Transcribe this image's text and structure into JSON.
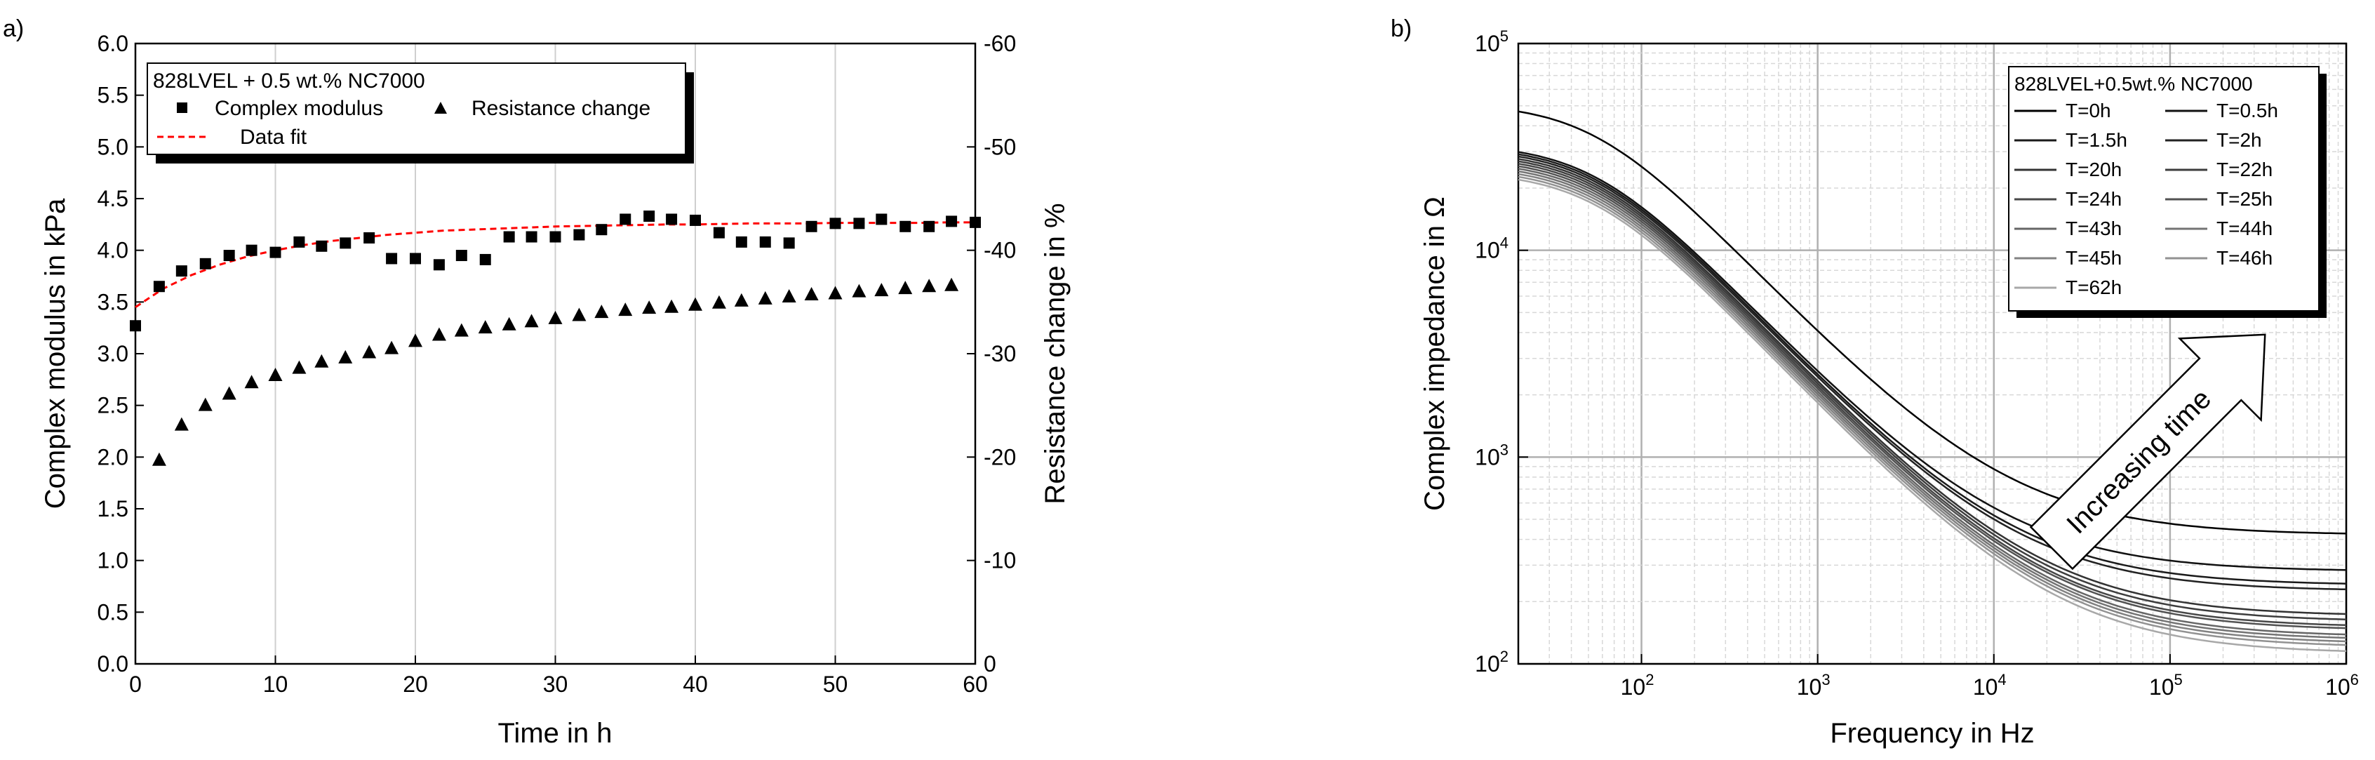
{
  "chart_data": [
    {
      "panel_label": "a)",
      "type": "scatter",
      "xlabel": "Time in h",
      "ylabel": "Complex modulus in kPa",
      "y2label": "Resistance change in %",
      "xlim": [
        0,
        60
      ],
      "ylim": [
        0,
        6
      ],
      "y2lim": [
        0,
        -60
      ],
      "xticks": [
        "0",
        "10",
        "20",
        "30",
        "40",
        "50",
        "60"
      ],
      "yticks": [
        "0.0",
        "0.5",
        "1.0",
        "1.5",
        "2.0",
        "2.5",
        "3.0",
        "3.5",
        "4.0",
        "4.5",
        "5.0",
        "5.5",
        "6.0"
      ],
      "y2ticks": [
        "0",
        "-10",
        "-20",
        "-30",
        "-40",
        "-50",
        "-60"
      ],
      "grid": "vertical",
      "legend": {
        "title": "828LVEL + 0.5 wt.% NC7000",
        "position": "top-left",
        "entries": [
          "Complex modulus",
          "Resistance change",
          "Data fit"
        ]
      },
      "series": [
        {
          "name": "Complex modulus",
          "marker": "square",
          "axis": "left",
          "x": [
            0,
            1.7,
            3.3,
            5,
            6.7,
            8.3,
            10,
            11.7,
            13.3,
            15,
            16.7,
            18.3,
            20,
            21.7,
            23.3,
            25,
            26.7,
            28.3,
            30,
            31.7,
            33.3,
            35,
            36.7,
            38.3,
            40,
            41.7,
            43.3,
            45,
            46.7,
            48.3,
            50,
            51.7,
            53.3,
            55,
            56.7,
            58.3,
            60
          ],
          "y": [
            3.27,
            3.65,
            3.8,
            3.87,
            3.95,
            4.0,
            3.98,
            4.08,
            4.04,
            4.07,
            4.12,
            3.92,
            3.92,
            3.86,
            3.95,
            3.91,
            4.13,
            4.13,
            4.13,
            4.15,
            4.2,
            4.3,
            4.33,
            4.3,
            4.29,
            4.17,
            4.08,
            4.08,
            4.07,
            4.23,
            4.26,
            4.26,
            4.3,
            4.23,
            4.23,
            4.28,
            4.27
          ]
        },
        {
          "name": "Resistance change",
          "marker": "triangle",
          "axis": "right",
          "x": [
            1.7,
            3.3,
            5,
            6.7,
            8.3,
            10,
            11.7,
            13.3,
            15,
            16.7,
            18.3,
            20,
            21.7,
            23.3,
            25,
            26.7,
            28.3,
            30,
            31.7,
            33.3,
            35,
            36.7,
            38.3,
            40,
            41.7,
            43.3,
            45,
            46.7,
            48.3,
            50,
            51.7,
            53.3,
            55,
            56.7,
            58.3
          ],
          "y": [
            -19.7,
            -23.1,
            -25.0,
            -26.1,
            -27.2,
            -27.9,
            -28.6,
            -29.2,
            -29.6,
            -30.1,
            -30.5,
            -31.2,
            -31.8,
            -32.2,
            -32.5,
            -32.8,
            -33.1,
            -33.4,
            -33.7,
            -34.0,
            -34.2,
            -34.4,
            -34.5,
            -34.7,
            -34.9,
            -35.1,
            -35.3,
            -35.5,
            -35.7,
            -35.8,
            -36.0,
            -36.1,
            -36.3,
            -36.5,
            -36.6
          ]
        },
        {
          "name": "Data fit",
          "style": "dashed",
          "color": "#ff0000",
          "axis": "left",
          "x": [
            0,
            2,
            4,
            6,
            8,
            10,
            12,
            14,
            16,
            18,
            20,
            22,
            24,
            26,
            28,
            30,
            32,
            34,
            36,
            38,
            40,
            42,
            44,
            46,
            48,
            50,
            52,
            54,
            56,
            58,
            60
          ],
          "y": [
            3.45,
            3.63,
            3.76,
            3.86,
            3.94,
            4.0,
            4.05,
            4.09,
            4.12,
            4.15,
            4.17,
            4.19,
            4.2,
            4.21,
            4.22,
            4.23,
            4.235,
            4.24,
            4.245,
            4.25,
            4.25,
            4.255,
            4.26,
            4.26,
            4.26,
            4.265,
            4.265,
            4.265,
            4.265,
            4.27,
            4.27
          ]
        }
      ]
    },
    {
      "panel_label": "b)",
      "type": "line",
      "xscale": "log",
      "yscale": "log",
      "xlabel": "Frequency in Hz",
      "ylabel": "Complex impedance in Ω",
      "xlim": [
        20,
        1000000
      ],
      "ylim": [
        100,
        100000
      ],
      "xticks": [
        {
          "value": 100,
          "mantissa": "10",
          "exp": "2"
        },
        {
          "value": 1000,
          "mantissa": "10",
          "exp": "3"
        },
        {
          "value": 10000,
          "mantissa": "10",
          "exp": "4"
        },
        {
          "value": 100000,
          "mantissa": "10",
          "exp": "5"
        },
        {
          "value": 1000000,
          "mantissa": "10",
          "exp": "6"
        }
      ],
      "yticks": [
        {
          "value": 100,
          "mantissa": "10",
          "exp": "2"
        },
        {
          "value": 1000,
          "mantissa": "10",
          "exp": "3"
        },
        {
          "value": 10000,
          "mantissa": "10",
          "exp": "4"
        },
        {
          "value": 100000,
          "mantissa": "10",
          "exp": "5"
        }
      ],
      "grid": "major+minor",
      "annotation": "Increasing time",
      "legend": {
        "title": "828LVEL+0.5wt.% NC7000",
        "position": "top-right",
        "columns": 2
      },
      "series": [
        {
          "name": "T=0h",
          "color": "#000000",
          "r0": 33000,
          "rinf": 420
        },
        {
          "name": "T=0.5h",
          "color": "#111111",
          "r0": 21000,
          "rinf": 280
        },
        {
          "name": "T=1.5h",
          "color": "#1a1a1a",
          "r0": 20500,
          "rinf": 240
        },
        {
          "name": "T=2h",
          "color": "#222222",
          "r0": 20000,
          "rinf": 225
        },
        {
          "name": "T=20h",
          "color": "#333333",
          "r0": 19500,
          "rinf": 170
        },
        {
          "name": "T=22h",
          "color": "#3d3d3d",
          "r0": 19000,
          "rinf": 160
        },
        {
          "name": "T=24h",
          "color": "#474747",
          "r0": 18500,
          "rinf": 150
        },
        {
          "name": "T=25h",
          "color": "#525252",
          "r0": 18000,
          "rinf": 145
        },
        {
          "name": "T=43h",
          "color": "#666666",
          "r0": 17500,
          "rinf": 135
        },
        {
          "name": "T=44h",
          "color": "#747474",
          "r0": 17000,
          "rinf": 130
        },
        {
          "name": "T=45h",
          "color": "#828282",
          "r0": 16500,
          "rinf": 125
        },
        {
          "name": "T=46h",
          "color": "#929292",
          "r0": 16000,
          "rinf": 120
        },
        {
          "name": "T=62h",
          "color": "#a8a8a8",
          "r0": 15500,
          "rinf": 112
        }
      ]
    }
  ]
}
